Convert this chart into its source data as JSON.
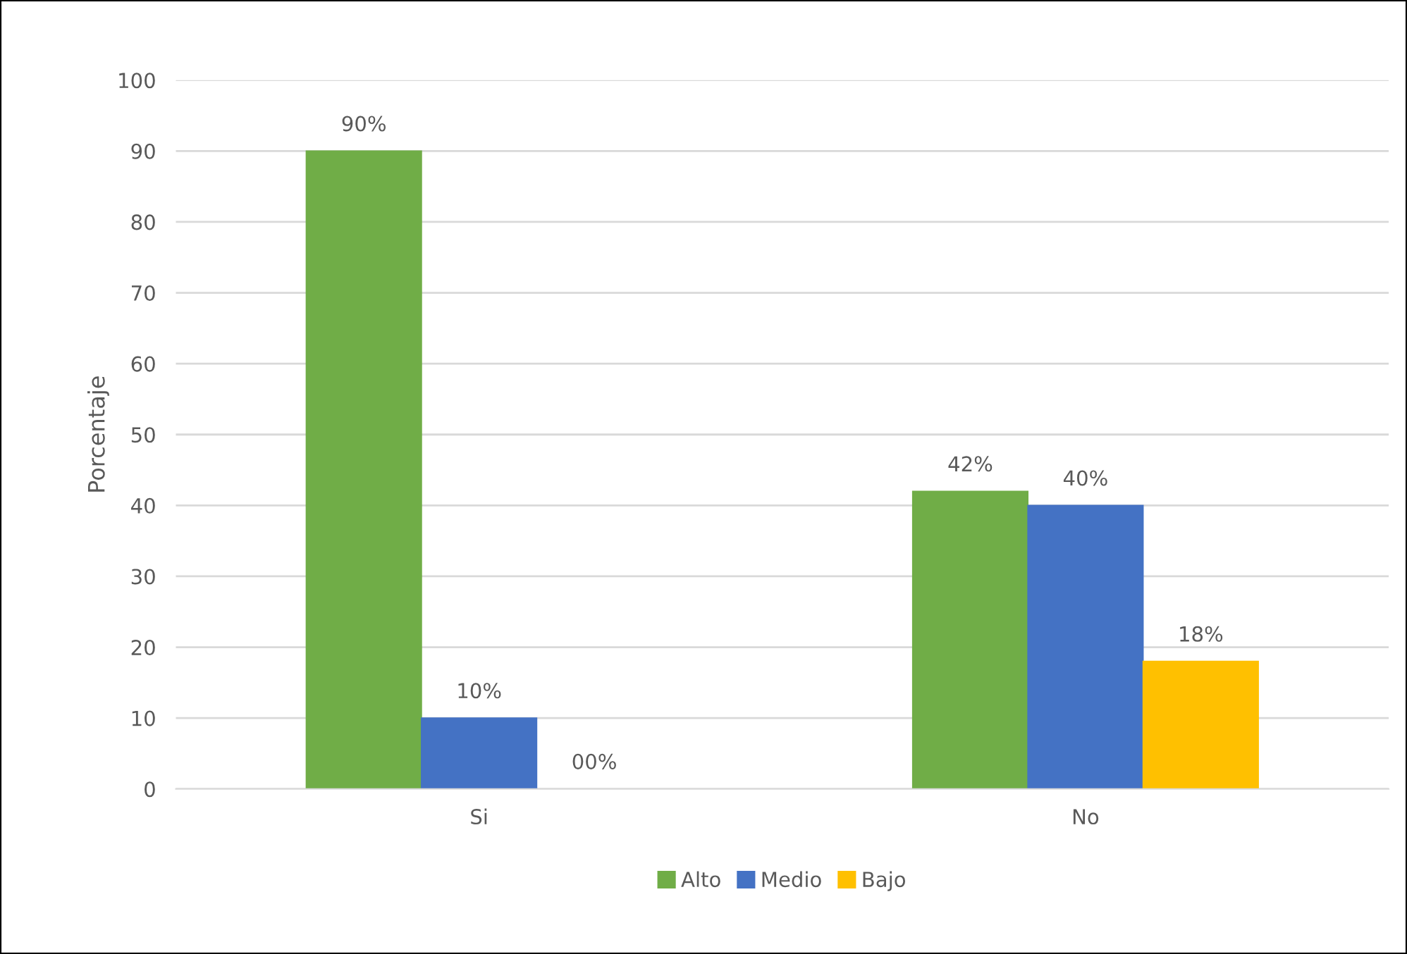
{
  "chart_data": {
    "type": "bar",
    "ylabel": "Porcentaje",
    "categories": [
      "Si",
      "No"
    ],
    "series": [
      {
        "name": "Alto",
        "color": "#70ad47",
        "values": [
          90,
          42
        ],
        "value_labels": [
          "90%",
          "42%"
        ]
      },
      {
        "name": "Medio",
        "color": "#4472c4",
        "values": [
          10,
          40
        ],
        "value_labels": [
          "10%",
          "40%"
        ]
      },
      {
        "name": "Bajo",
        "color": "#ffc000",
        "values": [
          0,
          18
        ],
        "value_labels": [
          "00%",
          "18%"
        ]
      }
    ],
    "ylim": [
      0,
      100
    ],
    "yticks": [
      0,
      10,
      20,
      30,
      40,
      50,
      60,
      70,
      80,
      90,
      100
    ],
    "grid": "y",
    "legend": "bottom"
  }
}
